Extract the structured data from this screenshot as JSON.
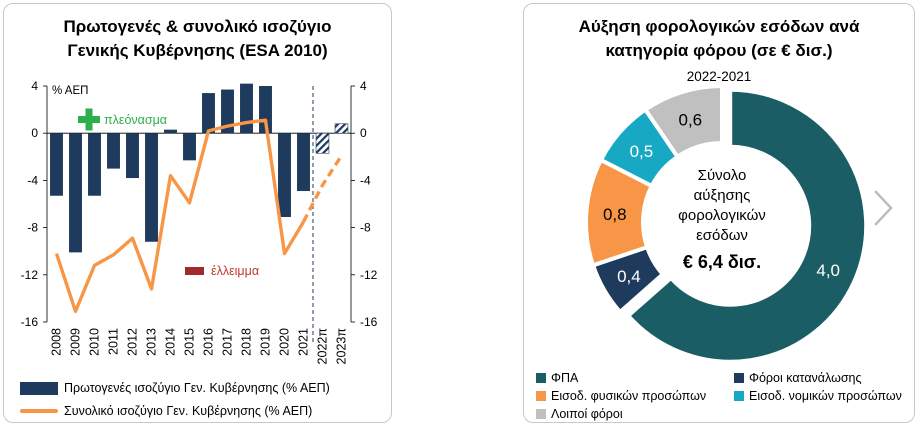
{
  "left_chart": {
    "title_line1": "Πρωτογενές & συνολικό ισοζύγιο",
    "title_line2": "Γενικής Κυβέρνησης (ESA 2010)",
    "unit_label": "% ΑΕΠ",
    "surplus_label": "πλεόνασμα",
    "deficit_label": "έλλειμμα",
    "legend_bar": "Πρωτογενές ισοζύγιο Γεν. Κυβέρνησης (% ΑΕΠ)",
    "legend_line": "Συνολικό ισοζύγιο Γεν. Κυβέρνησης (% ΑΕΠ)"
  },
  "right_chart": {
    "title_line1": "Αύξηση φορολογικών εσόδων ανά",
    "title_line2": "κατηγορία φόρου (σε € δισ.)",
    "subtitle": "2022-2021",
    "center_line1": "Σύνολο",
    "center_line2": "αύξησης",
    "center_line3": "φορολογικών",
    "center_line4": "εσόδων",
    "center_total": "€ 6,4 δισ."
  },
  "chart_data": [
    {
      "type": "bar",
      "title": "Πρωτογενές & συνολικό ισοζύγιο Γενικής Κυβέρνησης (ESA 2010)",
      "ylabel": "% ΑΕΠ",
      "ylim": [
        -16,
        4
      ],
      "yticks": [
        4,
        0,
        -4,
        -8,
        -12,
        -16
      ],
      "categories": [
        "2008",
        "2009",
        "2010",
        "2011",
        "2012",
        "2013",
        "2014",
        "2015",
        "2016",
        "2017",
        "2018",
        "2019",
        "2020",
        "2021",
        "2022π",
        "2023π"
      ],
      "projection_from_index": 14,
      "series": [
        {
          "name": "Πρωτογενές ισοζύγιο Γεν. Κυβέρνησης (% ΑΕΠ)",
          "kind": "bar",
          "color": "#1e3a5c",
          "values": [
            -5.3,
            -10.1,
            -5.3,
            -3.0,
            -3.8,
            -9.2,
            0.3,
            -2.3,
            3.4,
            3.7,
            4.2,
            4.0,
            -7.1,
            -4.9,
            -1.7,
            0.8
          ]
        },
        {
          "name": "Συνολικό ισοζύγιο Γεν. Κυβέρνησης (% ΑΕΠ)",
          "kind": "line",
          "color": "#f79646",
          "values": [
            -10.2,
            -15.1,
            -11.2,
            -10.3,
            -8.9,
            -13.2,
            -3.6,
            -5.9,
            0.2,
            0.6,
            0.9,
            1.1,
            -10.2,
            -7.5,
            -4.4,
            -1.9
          ]
        }
      ]
    },
    {
      "type": "pie",
      "title": "Αύξηση φορολογικών εσόδων ανά κατηγορία φόρου (σε € δισ.)",
      "subtitle": "2022-2021",
      "slices": [
        {
          "label": "ΦΠΑ",
          "value": 4.0,
          "value_label": "4,0",
          "color": "#1b5d65"
        },
        {
          "label": "Φόροι κατανάλωσης",
          "value": 0.4,
          "value_label": "0,4",
          "color": "#1e3a5c"
        },
        {
          "label": "Εισοδ. φυσικών προσώπων",
          "value": 0.8,
          "value_label": "0,8",
          "color": "#f79646"
        },
        {
          "label": "Εισοδ. νομικών προσώπων",
          "value": 0.5,
          "value_label": "0,5",
          "color": "#17a8c4"
        },
        {
          "label": "Λοιποί φόροι",
          "value": 0.6,
          "value_label": "0,6",
          "color": "#c0c0c0"
        }
      ]
    }
  ]
}
